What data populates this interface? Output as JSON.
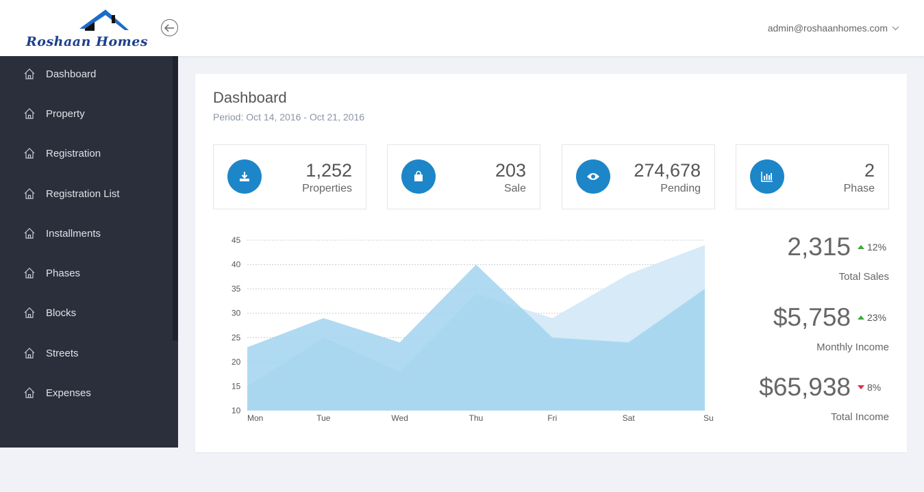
{
  "header": {
    "logo_text": "Roshaan Homes",
    "user_email": "admin@roshaanhomes.com",
    "toggle_icon": "arrow-left-circle-icon",
    "dropdown_icon": "chevron-down-icon"
  },
  "sidebar": {
    "items": [
      {
        "label": "Dashboard",
        "icon": "home-icon"
      },
      {
        "label": "Property",
        "icon": "home-icon"
      },
      {
        "label": "Registration",
        "icon": "home-icon"
      },
      {
        "label": "Registration List",
        "icon": "home-icon"
      },
      {
        "label": "Installments",
        "icon": "home-icon"
      },
      {
        "label": "Phases",
        "icon": "home-icon"
      },
      {
        "label": "Blocks",
        "icon": "home-icon"
      },
      {
        "label": "Streets",
        "icon": "home-icon"
      },
      {
        "label": "Expenses",
        "icon": "home-icon"
      }
    ]
  },
  "main": {
    "title": "Dashboard",
    "period": "Period: Oct 14, 2016 - Oct 21, 2016",
    "stats": [
      {
        "value": "1,252",
        "label": "Properties",
        "icon": "download-icon"
      },
      {
        "value": "203",
        "label": "Sale",
        "icon": "shopping-bag-icon"
      },
      {
        "value": "274,678",
        "label": "Pending",
        "icon": "eye-icon"
      },
      {
        "value": "2",
        "label": "Phase",
        "icon": "bar-chart-icon"
      }
    ],
    "kpis": [
      {
        "value": "2,315",
        "change": "12%",
        "direction": "up",
        "label": "Total Sales"
      },
      {
        "value": "$5,758",
        "change": "23%",
        "direction": "up",
        "label": "Monthly Income"
      },
      {
        "value": "$65,938",
        "change": "8%",
        "direction": "down",
        "label": "Total Income"
      }
    ]
  },
  "colors": {
    "accent": "#1c86c9",
    "sidebar_bg": "#2a2f3b",
    "up": "#3aa935",
    "down": "#e22b43",
    "series_back": "#d6eaf7",
    "series_front": "#a2d3ee"
  },
  "chart_data": {
    "type": "area",
    "categories": [
      "Mon",
      "Tue",
      "Wed",
      "Thu",
      "Fri",
      "Sat",
      "Su"
    ],
    "yticks": [
      10,
      15,
      20,
      25,
      30,
      35,
      40,
      45
    ],
    "ylim": [
      10,
      45
    ],
    "grid": true,
    "series": [
      {
        "values": [
          15,
          25,
          18,
          34,
          29,
          38,
          44
        ]
      },
      {
        "values": [
          23,
          29,
          24,
          40,
          25,
          24,
          35
        ]
      }
    ]
  }
}
